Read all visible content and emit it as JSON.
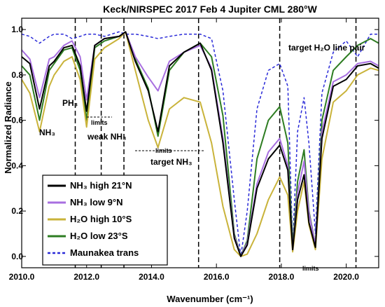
{
  "chart_data": {
    "type": "line",
    "title": "Keck/NIRSPEC 2017 Feb 4 Jupiter CML 280°W",
    "xlabel": "Wavenumber (cm⁻¹)",
    "ylabel": "Normalized Radiance",
    "xlim": [
      2010.0,
      2021.0
    ],
    "ylim": [
      -0.05,
      1.05
    ],
    "x_ticks": [
      {
        "v": 2010.0,
        "label": "2010.0"
      },
      {
        "v": 2012.0,
        "label": "2012.0"
      },
      {
        "v": 2014.0,
        "label": "2014.0"
      },
      {
        "v": 2016.0,
        "label": "2016.0"
      },
      {
        "v": 2018.0,
        "label": "2018.0"
      },
      {
        "v": 2020.0,
        "label": "2020.0"
      }
    ],
    "y_ticks": [
      {
        "v": 0.0,
        "label": "0.0"
      },
      {
        "v": 0.2,
        "label": "0.2"
      },
      {
        "v": 0.4,
        "label": "0.4"
      },
      {
        "v": 0.6,
        "label": "0.6"
      },
      {
        "v": 0.8,
        "label": "0.8"
      },
      {
        "v": 1.0,
        "label": "1.0"
      }
    ],
    "grid": false,
    "legend_position": "bottom-left",
    "x": [
      2010.0,
      2010.25,
      2010.55,
      2010.85,
      2011.0,
      2011.3,
      2011.55,
      2011.8,
      2012.0,
      2012.25,
      2012.55,
      2013.0,
      2013.2,
      2013.5,
      2013.9,
      2014.2,
      2014.55,
      2015.0,
      2015.5,
      2015.85,
      2016.2,
      2016.55,
      2016.75,
      2016.95,
      2017.25,
      2017.6,
      2017.95,
      2018.2,
      2018.35,
      2018.5,
      2018.7,
      2018.85,
      2019.05,
      2019.25,
      2019.6,
      2020.0,
      2020.35,
      2020.75,
      2021.0
    ],
    "series": [
      {
        "name": "NH₃ high 21°N",
        "color": "#000000",
        "dash": "",
        "width": 2,
        "values": [
          0.88,
          0.85,
          0.65,
          0.84,
          0.86,
          0.92,
          0.93,
          0.84,
          0.64,
          0.93,
          0.96,
          0.97,
          0.99,
          0.86,
          0.73,
          0.55,
          0.84,
          0.9,
          0.94,
          0.82,
          0.5,
          0.08,
          0.0,
          0.05,
          0.3,
          0.43,
          0.49,
          0.38,
          0.03,
          0.25,
          0.36,
          0.15,
          0.04,
          0.52,
          0.75,
          0.78,
          0.84,
          0.85,
          0.83
        ]
      },
      {
        "name": "NH₃ low 9°N",
        "color": "#a86fe0",
        "dash": "",
        "width": 2,
        "values": [
          0.91,
          0.87,
          0.7,
          0.87,
          0.88,
          0.93,
          0.95,
          0.88,
          0.69,
          0.93,
          0.96,
          0.97,
          0.99,
          0.88,
          0.79,
          0.73,
          0.86,
          0.9,
          0.93,
          0.83,
          0.52,
          0.09,
          0.0,
          0.06,
          0.32,
          0.46,
          0.52,
          0.4,
          0.03,
          0.28,
          0.42,
          0.19,
          0.05,
          0.55,
          0.77,
          0.8,
          0.85,
          0.86,
          0.84
        ]
      },
      {
        "name": "H₂O high 10°S",
        "color": "#c9b33a",
        "dash": "",
        "width": 2,
        "values": [
          0.78,
          0.72,
          0.55,
          0.75,
          0.8,
          0.86,
          0.88,
          0.78,
          0.57,
          0.87,
          0.92,
          0.96,
          0.99,
          0.82,
          0.6,
          0.48,
          0.65,
          0.7,
          0.68,
          0.5,
          0.22,
          0.03,
          0.0,
          0.01,
          0.1,
          0.25,
          0.35,
          0.27,
          0.02,
          0.2,
          0.33,
          0.14,
          0.03,
          0.43,
          0.68,
          0.73,
          0.8,
          0.83,
          0.82
        ]
      },
      {
        "name": "H₂O low 23°S",
        "color": "#2e7d22",
        "dash": "",
        "width": 2,
        "values": [
          0.84,
          0.8,
          0.6,
          0.82,
          0.85,
          0.91,
          0.92,
          0.82,
          0.6,
          0.92,
          0.95,
          0.97,
          0.99,
          0.87,
          0.74,
          0.53,
          0.82,
          0.9,
          0.94,
          0.88,
          0.62,
          0.1,
          0.0,
          0.07,
          0.43,
          0.6,
          0.66,
          0.5,
          0.04,
          0.33,
          0.47,
          0.2,
          0.05,
          0.6,
          0.82,
          0.88,
          0.93,
          0.96,
          0.94
        ]
      },
      {
        "name": "Maunakea trans",
        "color": "#2a2ad8",
        "dash": "4 3",
        "width": 1.5,
        "values": [
          0.98,
          0.97,
          0.94,
          0.97,
          0.98,
          0.98,
          0.96,
          0.97,
          0.98,
          0.98,
          0.97,
          0.99,
          0.98,
          0.98,
          0.97,
          0.96,
          0.97,
          0.98,
          0.98,
          0.96,
          0.73,
          0.25,
          0.0,
          0.2,
          0.65,
          0.82,
          0.85,
          0.75,
          0.05,
          0.55,
          0.7,
          0.5,
          0.1,
          0.72,
          0.9,
          0.95,
          0.88,
          0.98,
          0.98
        ]
      }
    ],
    "vlines": [
      2011.65,
      2012.45,
      2013.15,
      2015.45,
      2017.95,
      2020.3
    ],
    "annotations": [
      {
        "id": "nh3-a",
        "text": "NH₃"
      },
      {
        "id": "ph3",
        "text": "PH₃"
      },
      {
        "id": "limits-1",
        "text": "limits"
      },
      {
        "id": "weak-nh3",
        "text": "weak NH₃"
      },
      {
        "id": "limits-2",
        "text": "limits"
      },
      {
        "id": "target-nh3",
        "text": "target NH₃"
      },
      {
        "id": "target-h2o",
        "text": "target H₂O line pair"
      },
      {
        "id": "limits-3",
        "text": "limits"
      }
    ]
  }
}
